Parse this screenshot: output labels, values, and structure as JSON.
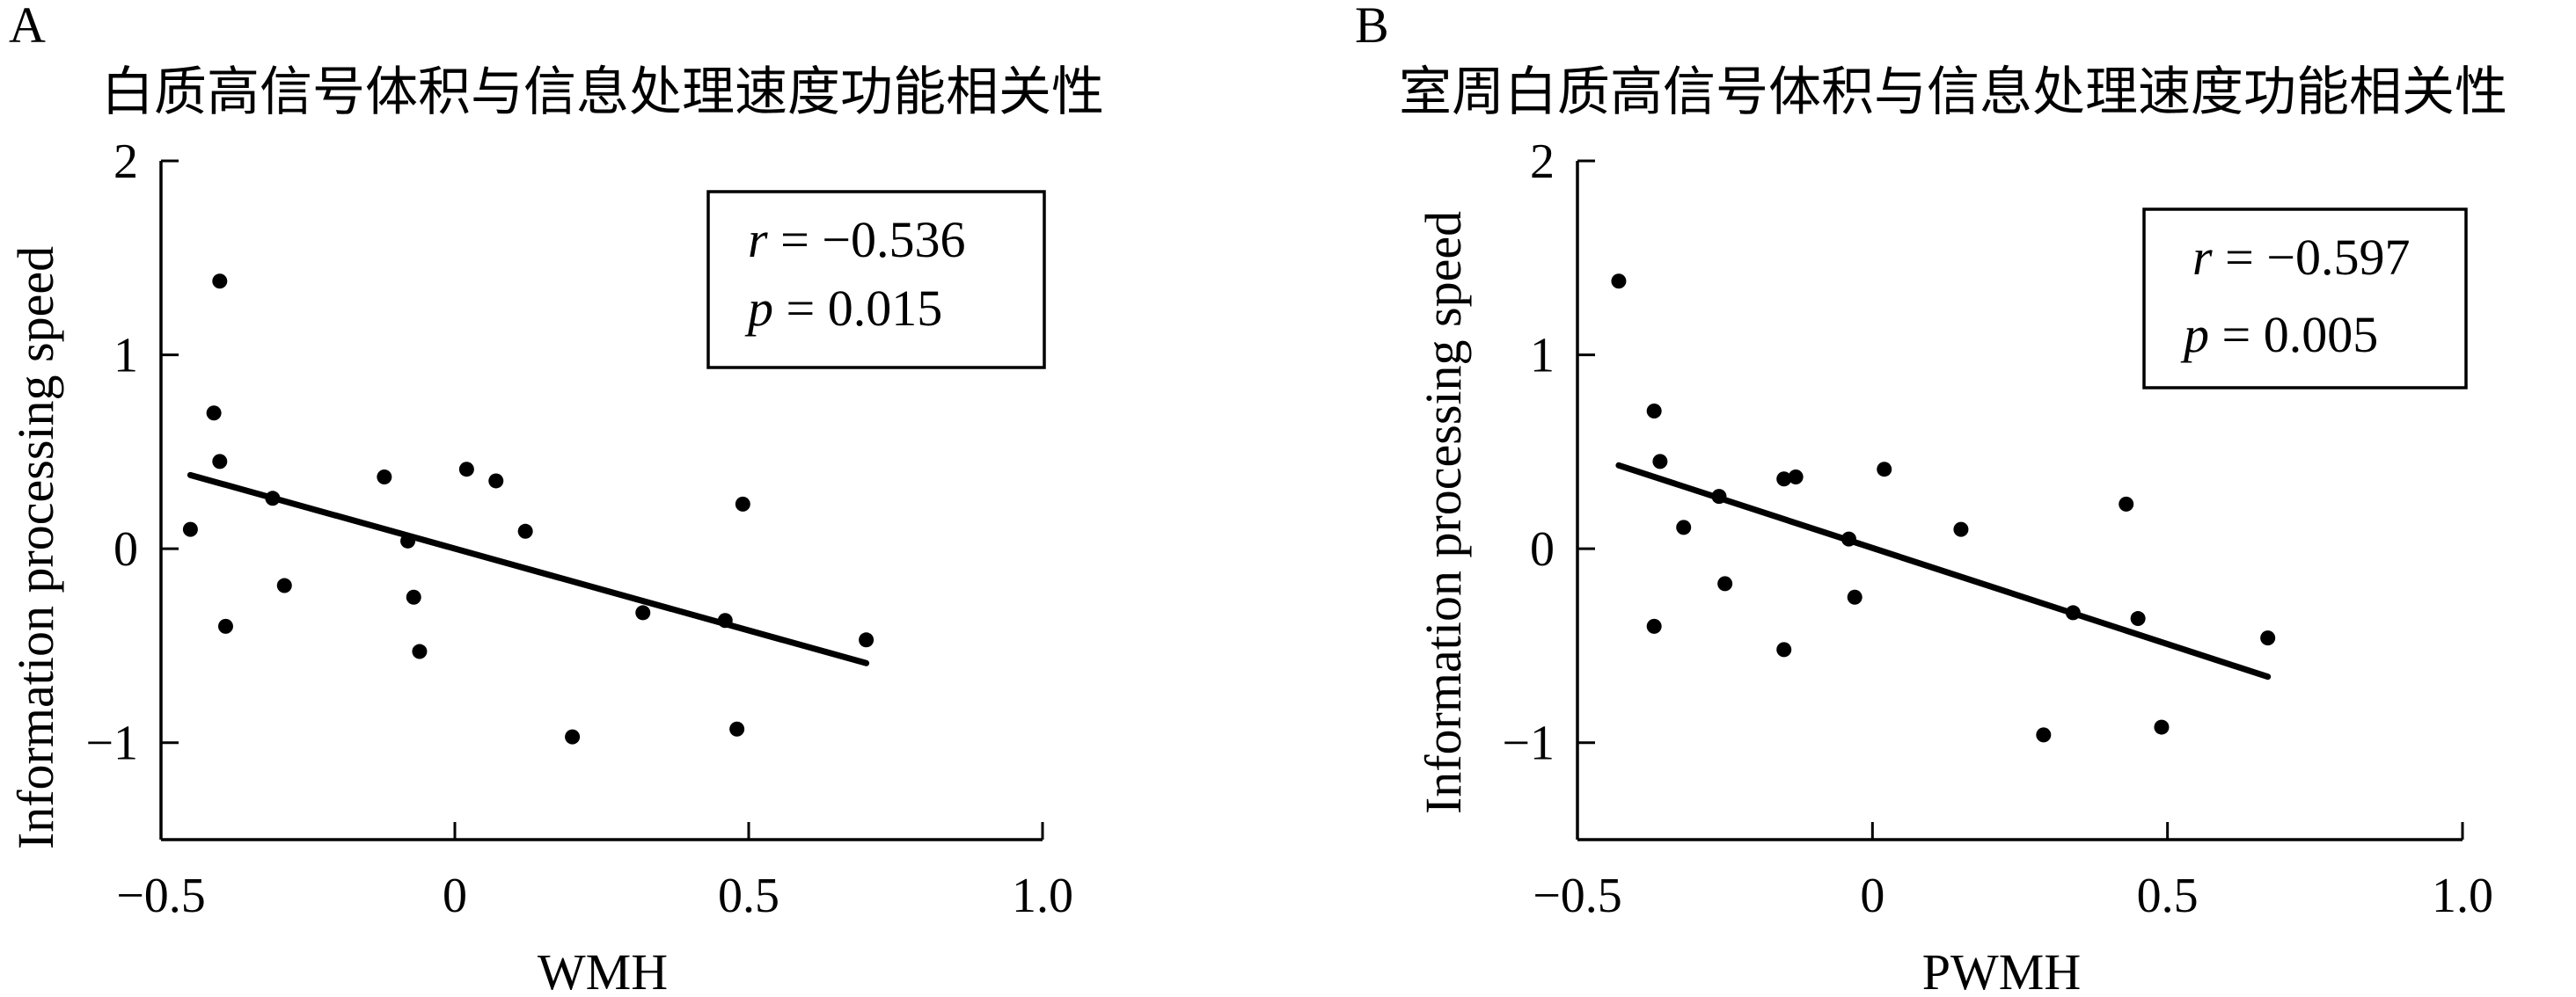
{
  "chart_data": [
    {
      "panel": "A",
      "type": "scatter",
      "title": "白质高信号体积与信息处理速度功能相关性",
      "xlabel": "WMH",
      "ylabel": "Information processing speed",
      "xlim": [
        -0.5,
        1.0
      ],
      "ylim": [
        -1.5,
        2.0
      ],
      "xticks": [
        -0.5,
        0,
        0.5,
        1.0
      ],
      "xtick_labels": [
        "−0.5",
        "0",
        "0.5",
        "1.0"
      ],
      "yticks": [
        -1,
        0,
        1,
        2
      ],
      "ytick_labels": [
        "−1",
        "0",
        "1",
        "2"
      ],
      "stats": {
        "r": "−0.536",
        "p": "0.015"
      },
      "trendline": {
        "x": [
          -0.45,
          0.7
        ],
        "y": [
          0.38,
          -0.59
        ]
      },
      "points": [
        {
          "x": -0.45,
          "y": 0.1
        },
        {
          "x": -0.4,
          "y": 1.38
        },
        {
          "x": -0.41,
          "y": 0.7
        },
        {
          "x": -0.4,
          "y": 0.45
        },
        {
          "x": -0.39,
          "y": -0.4
        },
        {
          "x": -0.31,
          "y": 0.26
        },
        {
          "x": -0.29,
          "y": -0.19
        },
        {
          "x": -0.12,
          "y": 0.37
        },
        {
          "x": -0.08,
          "y": 0.04
        },
        {
          "x": -0.07,
          "y": -0.25
        },
        {
          "x": -0.06,
          "y": -0.53
        },
        {
          "x": 0.02,
          "y": 0.41
        },
        {
          "x": 0.07,
          "y": 0.35
        },
        {
          "x": 0.12,
          "y": 0.09
        },
        {
          "x": 0.2,
          "y": -0.97
        },
        {
          "x": 0.32,
          "y": -0.33
        },
        {
          "x": 0.46,
          "y": -0.37
        },
        {
          "x": 0.48,
          "y": -0.93
        },
        {
          "x": 0.49,
          "y": 0.23
        },
        {
          "x": 0.7,
          "y": -0.47
        }
      ]
    },
    {
      "panel": "B",
      "type": "scatter",
      "title": "室周白质高信号体积与信息处理速度功能相关性",
      "xlabel": "PWMH",
      "ylabel": "Information processing speed",
      "xlim": [
        -0.5,
        1.0
      ],
      "ylim": [
        -1.5,
        2.0
      ],
      "xticks": [
        -0.5,
        0,
        0.5,
        1.0
      ],
      "xtick_labels": [
        "−0.5",
        "0",
        "0.5",
        "1.0"
      ],
      "yticks": [
        -1,
        0,
        1,
        2
      ],
      "ytick_labels": [
        "−1",
        "0",
        "1",
        "2"
      ],
      "stats": {
        "r": "−0.597",
        "p": "0.005"
      },
      "trendline": {
        "x": [
          -0.43,
          0.67
        ],
        "y": [
          0.43,
          -0.66
        ]
      },
      "points": [
        {
          "x": -0.43,
          "y": 1.38
        },
        {
          "x": -0.37,
          "y": 0.71
        },
        {
          "x": -0.36,
          "y": 0.45
        },
        {
          "x": -0.37,
          "y": -0.4
        },
        {
          "x": -0.32,
          "y": 0.11
        },
        {
          "x": -0.26,
          "y": 0.27
        },
        {
          "x": -0.25,
          "y": -0.18
        },
        {
          "x": -0.15,
          "y": 0.36
        },
        {
          "x": -0.13,
          "y": 0.37
        },
        {
          "x": -0.15,
          "y": -0.52
        },
        {
          "x": -0.04,
          "y": 0.05
        },
        {
          "x": -0.03,
          "y": -0.25
        },
        {
          "x": 0.02,
          "y": 0.41
        },
        {
          "x": 0.15,
          "y": 0.1
        },
        {
          "x": 0.29,
          "y": -0.96
        },
        {
          "x": 0.34,
          "y": -0.33
        },
        {
          "x": 0.43,
          "y": 0.23
        },
        {
          "x": 0.45,
          "y": -0.36
        },
        {
          "x": 0.49,
          "y": -0.92
        },
        {
          "x": 0.67,
          "y": -0.46
        }
      ]
    }
  ]
}
